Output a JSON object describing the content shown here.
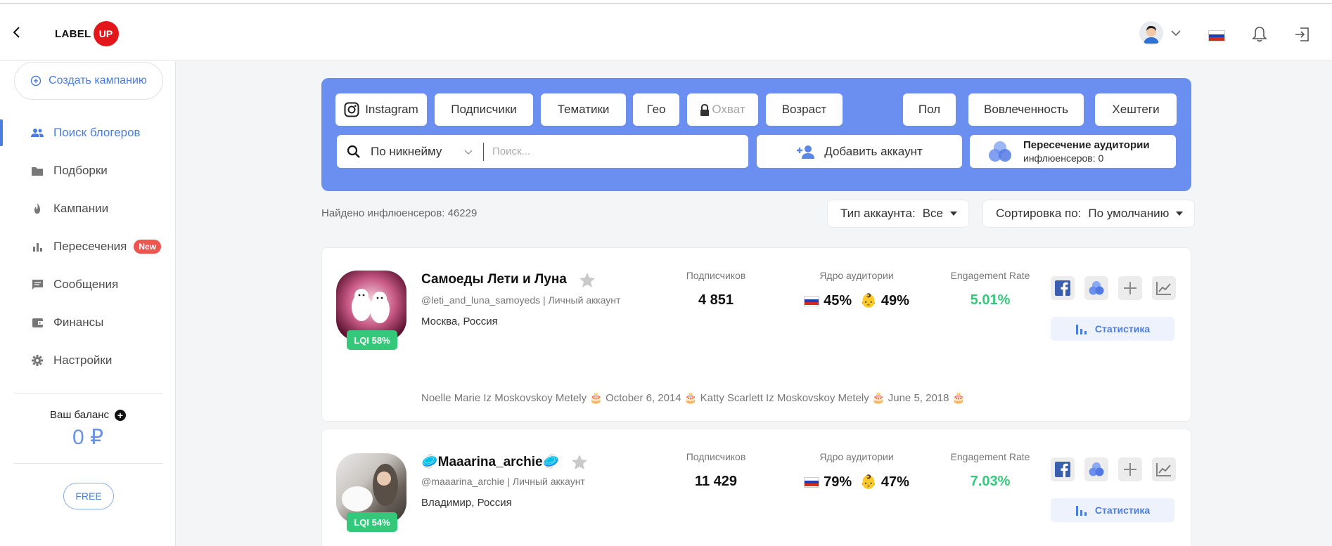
{
  "header": {
    "logo_label": "LABEL",
    "logo_badge": "UP"
  },
  "sidebar": {
    "create_campaign": "Создать кампанию",
    "items": [
      {
        "label": "Поиск блогеров",
        "icon": "people-icon",
        "active": true
      },
      {
        "label": "Подборки",
        "icon": "folder-icon"
      },
      {
        "label": "Кампании",
        "icon": "fire-icon"
      },
      {
        "label": "Пересечения",
        "icon": "bar-chart-icon",
        "badge": "New"
      },
      {
        "label": "Сообщения",
        "icon": "message-icon"
      },
      {
        "label": "Финансы",
        "icon": "wallet-icon"
      },
      {
        "label": "Настройки",
        "icon": "gear-icon"
      }
    ],
    "balance_label": "Ваш баланс",
    "balance_value": "0 ₽",
    "plan": "FREE"
  },
  "filters": {
    "buttons": [
      "Instagram",
      "Подписчики",
      "Тематики",
      "Гео",
      "Охват",
      "Возраст",
      "Пол",
      "Вовлеченность",
      "Хештеги"
    ],
    "search_mode": "По никнейму",
    "search_placeholder": "Поиск...",
    "add_account": "Добавить аккаунт",
    "intersection_title": "Пересечение аудитории",
    "intersection_sub": "инфлюенсеров: 0"
  },
  "results": {
    "found": "Найдено инфлюенсеров: 46229",
    "account_type_label": "Тип аккаунта:",
    "account_type_value": "Все",
    "sort_label": "Сортировка по:",
    "sort_value": "По умолчанию"
  },
  "columns": {
    "followers": "Подписчиков",
    "core": "Ядро аудитории",
    "er": "Engagement Rate",
    "stats_button": "Статистика"
  },
  "cards": [
    {
      "name": "Самоеды Лети и Луна",
      "handle": "@leti_and_luna_samoyeds | Личный аккаунт",
      "location": "Москва, Россия",
      "lqi": "LQI 58%",
      "followers": "4 851",
      "core_country": "45%",
      "core_age": "49%",
      "er": "5.01%",
      "history": "Noelle Marie Iz Moskovskoy Metely 🎂 October 6, 2014 🎂 Katty Scarlett Iz Moskovskoy Metely 🎂 June 5, 2018 🎂"
    },
    {
      "name": "🥏Maaarina_archie🥏",
      "handle": "@maaarina_archie | Личный аккаунт",
      "location": "Владимир, Россия",
      "lqi": "LQI 54%",
      "followers": "11 429",
      "core_country": "79%",
      "core_age": "47%",
      "er": "7.03%"
    }
  ],
  "colors": {
    "accent": "#4a7de0",
    "panel": "#6a8ff0",
    "green": "#34c97a",
    "logo_red": "#e3171b",
    "badge_red": "#f0544f"
  }
}
